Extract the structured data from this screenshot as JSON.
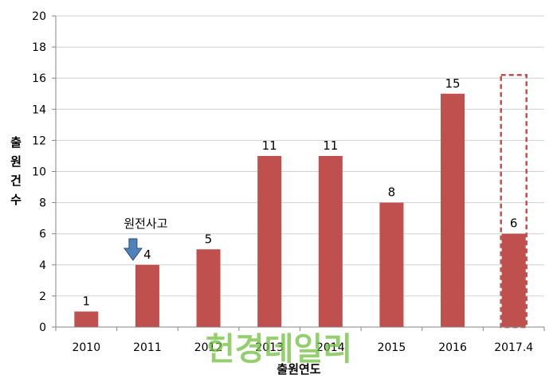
{
  "chart_data": {
    "type": "bar",
    "categories": [
      "2010",
      "2011",
      "2012",
      "2013",
      "2014",
      "2015",
      "2016",
      "2017.4"
    ],
    "values": [
      1,
      4,
      5,
      11,
      11,
      8,
      15,
      6
    ],
    "data_labels": [
      "1",
      "4",
      "5",
      "11",
      "11",
      "8",
      "15",
      "6"
    ],
    "title": "",
    "xlabel": "출원연도",
    "ylabel": "출원건수",
    "ylim": [
      0,
      20
    ],
    "yticks": [
      0,
      2,
      4,
      6,
      8,
      10,
      12,
      14,
      16,
      18,
      20
    ],
    "ytick_labels": [
      "0",
      "2",
      "4",
      "6",
      "8",
      "10",
      "12",
      "14",
      "16",
      "18",
      "20"
    ],
    "grid": true,
    "legend": "none",
    "bar_color": "#c0504d",
    "projection": {
      "category": "2017.4",
      "value": 16.2,
      "style": "dashed-outline",
      "color": "#c0504d"
    },
    "annotations": [
      {
        "text": "원전사고",
        "category": "2011",
        "marker": "down-arrow-icon",
        "color": "#4f81bd"
      }
    ],
    "watermark": "헌경데일리"
  }
}
